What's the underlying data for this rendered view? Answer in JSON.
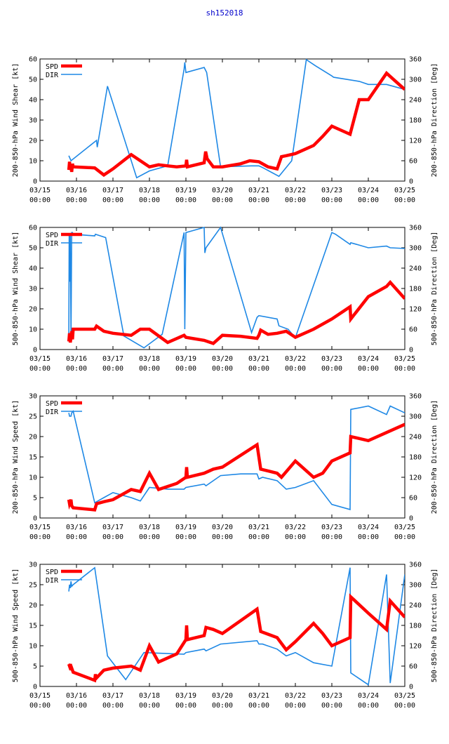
{
  "page_title": "sh152018",
  "colors": {
    "spd": "#ff0000",
    "dir": "#1e88e5",
    "axis": "#000000"
  },
  "chart_data": [
    {
      "type": "line",
      "ylabel": "200-850-hPa Wind Shear [kt]",
      "y2label": "200-850-hPa Direction [Deg]",
      "ylim": [
        0,
        60
      ],
      "yticks": [
        0,
        10,
        20,
        30,
        40,
        50,
        60
      ],
      "y2lim": [
        0,
        360
      ],
      "y2ticks": [
        0,
        60,
        120,
        180,
        240,
        300,
        360
      ],
      "xlim": [
        0,
        10
      ],
      "xticks": [
        {
          "day": "03/15",
          "time": "00:00"
        },
        {
          "day": "03/16",
          "time": "00:00"
        },
        {
          "day": "03/17",
          "time": "00:00"
        },
        {
          "day": "03/18",
          "time": "00:00"
        },
        {
          "day": "03/19",
          "time": "00:00"
        },
        {
          "day": "03/20",
          "time": "00:00"
        },
        {
          "day": "03/21",
          "time": "00:00"
        },
        {
          "day": "03/22",
          "time": "00:00"
        },
        {
          "day": "03/23",
          "time": "00:00"
        },
        {
          "day": "03/24",
          "time": "00:00"
        },
        {
          "day": "03/25",
          "time": "00:00"
        }
      ],
      "legend": [
        {
          "label": "SPD"
        },
        {
          "label": "DIR"
        }
      ],
      "series": [
        {
          "name": "SPD",
          "axis": "left",
          "x": [
            0.79,
            0.81,
            0.83,
            0.85,
            0.87,
            0.89,
            0.91,
            1.5,
            1.75,
            2.0,
            2.5,
            3.0,
            3.25,
            3.5,
            3.75,
            4.0,
            4.02,
            4.04,
            4.5,
            4.54,
            4.58,
            4.75,
            5.0,
            5.5,
            5.75,
            6.0,
            6.25,
            6.5,
            6.62,
            6.75,
            7.0,
            7.5,
            7.75,
            8.0,
            8.25,
            8.5,
            8.75,
            9.0,
            9.5,
            9.75,
            10.0
          ],
          "y": [
            5.5,
            9.5,
            5.5,
            7.5,
            4.5,
            8.5,
            7,
            6.5,
            3,
            6,
            13,
            7,
            8,
            7.5,
            7,
            7.5,
            10.5,
            7,
            9,
            14.5,
            11,
            7,
            7,
            8.5,
            10,
            9.5,
            7,
            6,
            12,
            12.5,
            13.5,
            17.5,
            22,
            27,
            25,
            23,
            40,
            40,
            53,
            49,
            45
          ]
        },
        {
          "name": "DIR",
          "axis": "right",
          "x": [
            0.79,
            0.85,
            1.55,
            1.57,
            1.85,
            2.65,
            3.0,
            3.5,
            3.95,
            3.97,
            4.0,
            4.5,
            4.57,
            4.95,
            5.8,
            6.0,
            6.1,
            6.55,
            6.9,
            7.3,
            7.55,
            8.0,
            8.05,
            8.75,
            9.0,
            9.5,
            10.0
          ],
          "y": [
            75,
            60,
            120,
            100,
            280,
            10,
            30,
            45,
            330,
            350,
            320,
            335,
            320,
            42,
            45,
            45,
            40,
            14,
            60,
            358,
            340,
            310,
            306,
            294,
            285,
            285,
            270
          ]
        }
      ]
    },
    {
      "type": "line",
      "ylabel": "500-850-hPa Wind Shear [kt]",
      "y2label": "500-850-hPa Direction [Deg]",
      "ylim": [
        0,
        60
      ],
      "yticks": [
        0,
        10,
        20,
        30,
        40,
        50,
        60
      ],
      "y2lim": [
        0,
        360
      ],
      "y2ticks": [
        0,
        60,
        120,
        180,
        240,
        300,
        360
      ],
      "xlim": [
        0,
        10
      ],
      "xticks": [
        {
          "day": "03/15",
          "time": "00:00"
        },
        {
          "day": "03/16",
          "time": "00:00"
        },
        {
          "day": "03/17",
          "time": "00:00"
        },
        {
          "day": "03/18",
          "time": "00:00"
        },
        {
          "day": "03/19",
          "time": "00:00"
        },
        {
          "day": "03/20",
          "time": "00:00"
        },
        {
          "day": "03/21",
          "time": "00:00"
        },
        {
          "day": "03/22",
          "time": "00:00"
        },
        {
          "day": "03/23",
          "time": "00:00"
        },
        {
          "day": "03/24",
          "time": "00:00"
        },
        {
          "day": "03/25",
          "time": "00:00"
        }
      ],
      "legend": [
        {
          "label": "SPD"
        },
        {
          "label": "DIR"
        }
      ],
      "series": [
        {
          "name": "SPD",
          "axis": "left",
          "x": [
            0.79,
            0.81,
            0.83,
            0.85,
            0.87,
            0.89,
            0.91,
            1.5,
            1.55,
            1.75,
            2.0,
            2.5,
            2.75,
            3.0,
            3.5,
            3.95,
            4.0,
            4.5,
            4.75,
            5.0,
            5.5,
            5.95,
            6.0,
            6.05,
            6.25,
            6.5,
            6.75,
            7.0,
            7.5,
            8.0,
            8.5,
            8.52,
            9.0,
            9.5,
            9.6,
            10.0
          ],
          "y": [
            4,
            8,
            3.5,
            6,
            9,
            5,
            10,
            10,
            11.5,
            9,
            8,
            7,
            10,
            10,
            3.5,
            7,
            6,
            4.5,
            3,
            7,
            6.5,
            5.5,
            7,
            9.5,
            7.5,
            8,
            9,
            6,
            10,
            15,
            21,
            15,
            26,
            31,
            33,
            25
          ]
        },
        {
          "name": "DIR",
          "axis": "right",
          "x": [
            0.79,
            0.8,
            0.81,
            0.83,
            0.85,
            0.87,
            0.89,
            0.91,
            1.5,
            1.52,
            1.8,
            2.3,
            2.85,
            3.35,
            3.95,
            3.97,
            4.0,
            4.5,
            4.52,
            4.55,
            4.95,
            5.8,
            5.95,
            6.0,
            6.5,
            6.55,
            6.8,
            7.0,
            8.0,
            8.1,
            8.5,
            8.52,
            9.0,
            9.5,
            9.6,
            10.0
          ],
          "y": [
            30,
            340,
            200,
            342,
            30,
            345,
            345,
            340,
            335,
            340,
            330,
            40,
            5,
            45,
            345,
            60,
            345,
            360,
            285,
            300,
            360,
            50,
            95,
            100,
            90,
            70,
            60,
            35,
            345,
            340,
            310,
            315,
            300,
            305,
            300,
            298
          ]
        }
      ]
    },
    {
      "type": "line",
      "ylabel": "200-850-hPa Wind Speed [kt]",
      "y2label": "200-850-hPa Direction [Deg]",
      "ylim": [
        0,
        30
      ],
      "yticks": [
        0,
        5,
        10,
        15,
        20,
        25,
        30
      ],
      "y2lim": [
        0,
        360
      ],
      "y2ticks": [
        0,
        60,
        120,
        180,
        240,
        300,
        360
      ],
      "xlim": [
        0,
        10
      ],
      "xticks": [
        {
          "day": "03/15",
          "time": "00:00"
        },
        {
          "day": "03/16",
          "time": "00:00"
        },
        {
          "day": "03/17",
          "time": "00:00"
        },
        {
          "day": "03/18",
          "time": "00:00"
        },
        {
          "day": "03/19",
          "time": "00:00"
        },
        {
          "day": "03/20",
          "time": "00:00"
        },
        {
          "day": "03/21",
          "time": "00:00"
        },
        {
          "day": "03/22",
          "time": "00:00"
        },
        {
          "day": "03/23",
          "time": "00:00"
        },
        {
          "day": "03/24",
          "time": "00:00"
        },
        {
          "day": "03/25",
          "time": "00:00"
        }
      ],
      "legend": [
        {
          "label": "SPD"
        },
        {
          "label": "DIR"
        }
      ],
      "series": [
        {
          "name": "SPD",
          "axis": "left",
          "x": [
            0.79,
            0.81,
            0.83,
            0.85,
            0.87,
            0.91,
            1.5,
            1.55,
            1.75,
            2.0,
            2.5,
            2.75,
            3.0,
            3.25,
            3.75,
            4.0,
            4.02,
            4.04,
            4.5,
            4.75,
            5.0,
            5.95,
            6.05,
            6.5,
            6.62,
            7.0,
            7.5,
            7.75,
            8.0,
            8.5,
            8.52,
            9.0,
            9.5,
            10.0
          ],
          "y": [
            4.5,
            3.5,
            4,
            4.5,
            3,
            2.5,
            2,
            3.5,
            4,
            4.5,
            7,
            6.5,
            11,
            7,
            8.5,
            10,
            12.5,
            10,
            11,
            12,
            12.5,
            18,
            12,
            11,
            10,
            14,
            10,
            11,
            14,
            16,
            20,
            19,
            21,
            23
          ]
        },
        {
          "name": "DIR",
          "axis": "right",
          "x": [
            0.79,
            0.81,
            0.85,
            0.87,
            0.91,
            1.5,
            1.75,
            2.0,
            2.5,
            2.75,
            3.0,
            3.5,
            3.95,
            4.0,
            4.5,
            4.55,
            4.95,
            5.5,
            5.95,
            6.0,
            6.1,
            6.5,
            6.75,
            7.0,
            7.5,
            8.0,
            8.5,
            8.52,
            9.0,
            9.5,
            9.6,
            10.0
          ],
          "y": [
            310,
            300,
            300,
            310,
            315,
            45,
            60,
            75,
            60,
            50,
            90,
            85,
            85,
            90,
            100,
            95,
            125,
            130,
            130,
            115,
            120,
            110,
            85,
            90,
            110,
            40,
            25,
            320,
            330,
            305,
            330,
            310
          ]
        }
      ]
    },
    {
      "type": "line",
      "ylabel": "500-850-hPa Wind Speed [kt]",
      "y2label": "500-850-hPa Direction [Deg]",
      "ylim": [
        0,
        30
      ],
      "yticks": [
        0,
        5,
        10,
        15,
        20,
        25,
        30
      ],
      "y2lim": [
        0,
        360
      ],
      "y2ticks": [
        0,
        60,
        120,
        180,
        240,
        300,
        360
      ],
      "xlim": [
        0,
        10
      ],
      "xticks": [
        {
          "day": "03/15",
          "time": "00:00"
        },
        {
          "day": "03/16",
          "time": "00:00"
        },
        {
          "day": "03/17",
          "time": "00:00"
        },
        {
          "day": "03/18",
          "time": "00:00"
        },
        {
          "day": "03/19",
          "time": "00:00"
        },
        {
          "day": "03/20",
          "time": "00:00"
        },
        {
          "day": "03/21",
          "time": "00:00"
        },
        {
          "day": "03/22",
          "time": "00:00"
        },
        {
          "day": "03/23",
          "time": "00:00"
        },
        {
          "day": "03/24",
          "time": "00:00"
        },
        {
          "day": "03/25",
          "time": "00:00"
        }
      ],
      "legend": [
        {
          "label": "SPD"
        },
        {
          "label": "DIR"
        }
      ],
      "series": [
        {
          "name": "SPD",
          "axis": "left",
          "x": [
            0.79,
            0.81,
            0.83,
            0.85,
            0.87,
            0.91,
            1.5,
            1.52,
            1.54,
            1.75,
            2.0,
            2.5,
            2.75,
            3.0,
            3.25,
            3.75,
            4.0,
            4.02,
            4.04,
            4.5,
            4.55,
            4.75,
            5.0,
            5.95,
            6.05,
            6.5,
            6.75,
            7.0,
            7.5,
            7.75,
            8.0,
            8.5,
            8.52,
            9.0,
            9.5,
            9.6,
            10.0
          ],
          "y": [
            5.5,
            5,
            5.5,
            4,
            4.5,
            3.5,
            1.5,
            3,
            2,
            4,
            4.5,
            5,
            4,
            10,
            6,
            8,
            11.5,
            15,
            11.5,
            12.5,
            14.5,
            14,
            13,
            19,
            13.5,
            12,
            9,
            11,
            15.5,
            13,
            10,
            12,
            22,
            18,
            14,
            21,
            17
          ]
        },
        {
          "name": "DIR",
          "axis": "right",
          "x": [
            0.79,
            0.81,
            0.83,
            0.85,
            0.87,
            0.91,
            1.5,
            1.85,
            2.35,
            2.85,
            3.95,
            4.0,
            4.5,
            4.55,
            4.95,
            5.95,
            6.0,
            6.1,
            6.5,
            6.75,
            7.0,
            7.5,
            8.0,
            8.5,
            8.52,
            9.0,
            9.5,
            9.6,
            9.95,
            10.0
          ],
          "y": [
            280,
            300,
            290,
            310,
            295,
            300,
            350,
            90,
            20,
            100,
            95,
            100,
            110,
            105,
            125,
            135,
            125,
            125,
            110,
            90,
            100,
            70,
            60,
            350,
            40,
            5,
            330,
            10,
            290,
            330
          ]
        }
      ]
    }
  ]
}
